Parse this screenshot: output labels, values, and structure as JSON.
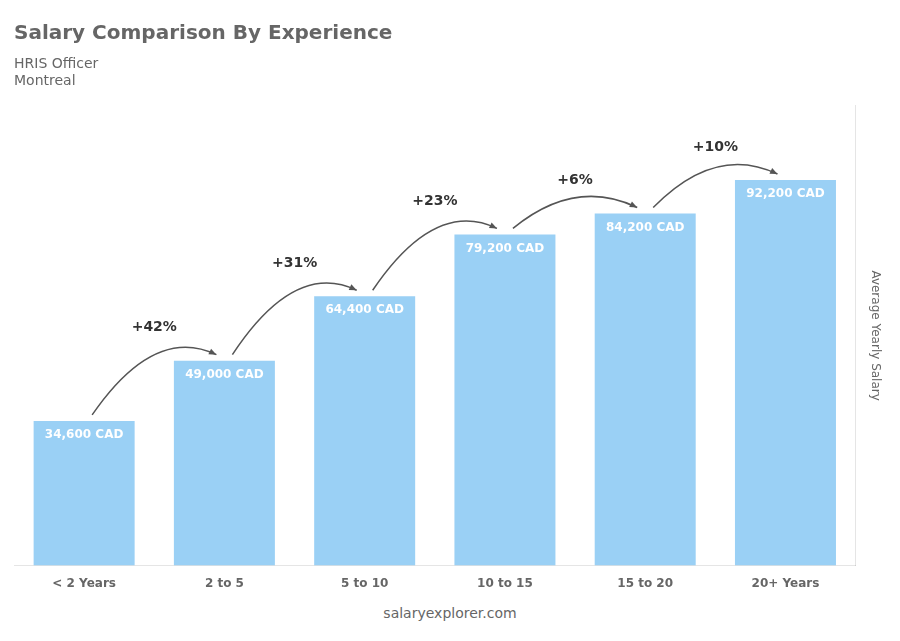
{
  "chart_data": {
    "type": "bar",
    "title": "Salary Comparison By Experience",
    "subtitle": [
      "HRIS Officer",
      "Montreal"
    ],
    "categories": [
      "< 2 Years",
      "2 to 5",
      "5 to 10",
      "10 to 15",
      "15 to 20",
      "20+ Years"
    ],
    "values": [
      34600,
      49000,
      64400,
      79200,
      84200,
      92200
    ],
    "value_labels": [
      "34,600 CAD",
      "49,000 CAD",
      "64,400 CAD",
      "79,200 CAD",
      "84,200 CAD",
      "92,200 CAD"
    ],
    "data_labels": true,
    "annotations": [
      "+42%",
      "+31%",
      "+23%",
      "+6%",
      "+10%"
    ],
    "ylabel": "Average Yearly Salary",
    "footer": "salaryexplorer.com",
    "ylim": [
      0,
      110000
    ],
    "yticks": [],
    "grid": false,
    "tick_labels": "x"
  }
}
